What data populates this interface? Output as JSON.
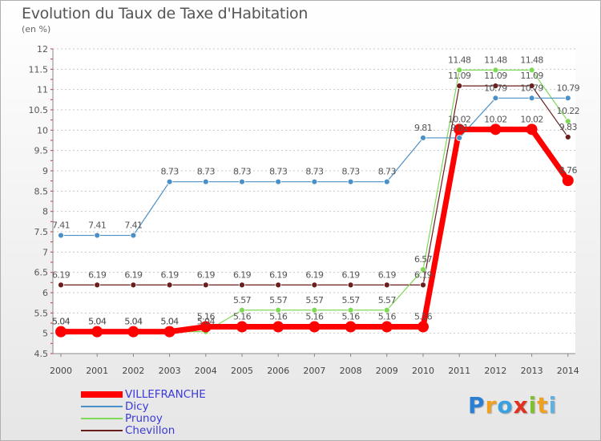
{
  "title": "Evolution du Taux de Taxe d'Habitation",
  "subtitle": "(en %)",
  "logo": {
    "letters": [
      {
        "ch": "P",
        "color": "#2a7fd4"
      },
      {
        "ch": "r",
        "color": "#f0a020"
      },
      {
        "ch": "o",
        "color": "#3aa0e0"
      },
      {
        "ch": "x",
        "color": "#e03020"
      },
      {
        "ch": "i",
        "color": "#80c030"
      },
      {
        "ch": "t",
        "color": "#f0a020"
      },
      {
        "ch": "i",
        "color": "#60b0e0"
      }
    ]
  },
  "chart_data": {
    "type": "line",
    "x": [
      "2000",
      "2001",
      "2002",
      "2003",
      "2004",
      "2005",
      "2006",
      "2007",
      "2008",
      "2009",
      "2010",
      "2011",
      "2012",
      "2013",
      "2014"
    ],
    "yticks": [
      "4.5",
      "5",
      "5.5",
      "6",
      "6.5",
      "7",
      "7.5",
      "8",
      "8.5",
      "9",
      "9.5",
      "10",
      "10.5",
      "11",
      "11.5",
      "12"
    ],
    "ylim": [
      4.5,
      12
    ],
    "grid": "horizontal dashed",
    "legend_position": "bottom-left",
    "series": [
      {
        "name": "Chevillon",
        "color": "#6b1e1e",
        "width": 1.2,
        "values": [
          6.19,
          6.19,
          6.19,
          6.19,
          6.19,
          6.19,
          6.19,
          6.19,
          6.19,
          6.19,
          6.19,
          11.09,
          11.09,
          11.09,
          9.83
        ],
        "labels": [
          "6.19",
          "6.19",
          "6.19",
          "6.19",
          "6.19",
          "6.19",
          "6.19",
          "6.19",
          "6.19",
          "6.19",
          "6.19",
          "11.09",
          "11.09",
          "11.09",
          "9.83"
        ]
      },
      {
        "name": "Prunoy",
        "color": "#7ed957",
        "width": 1.2,
        "values": [
          5.04,
          5.04,
          5.04,
          5.04,
          5.04,
          5.57,
          5.57,
          5.57,
          5.57,
          5.57,
          6.57,
          11.48,
          11.48,
          11.48,
          10.22
        ],
        "labels": [
          "5.04",
          "5.04",
          "5.04",
          "5.04",
          "5.04",
          "5.57",
          "5.57",
          "5.57",
          "5.57",
          "5.57",
          "6.57",
          "11.48",
          "11.48",
          "11.48",
          "10.22"
        ]
      },
      {
        "name": "Dicy",
        "color": "#4a90c8",
        "width": 1.2,
        "values": [
          7.41,
          7.41,
          7.41,
          8.73,
          8.73,
          8.73,
          8.73,
          8.73,
          8.73,
          8.73,
          9.81,
          9.81,
          10.79,
          10.79,
          10.79
        ],
        "labels": [
          "7.41",
          "7.41",
          "7.41",
          "8.73",
          "8.73",
          "8.73",
          "8.73",
          "8.73",
          "8.73",
          "8.73",
          "9.81",
          "9.81",
          "10.79",
          "10.79",
          "10.79"
        ]
      },
      {
        "name": "VILLEFRANCHE",
        "color": "#ff0000",
        "width": 7,
        "values": [
          5.04,
          5.04,
          5.04,
          5.04,
          5.16,
          5.16,
          5.16,
          5.16,
          5.16,
          5.16,
          5.16,
          10.02,
          10.02,
          10.02,
          8.76
        ],
        "labels": [
          "5.04",
          "5.04",
          "5.04",
          "5.04",
          "5.16",
          "5.16",
          "5.16",
          "5.16",
          "5.16",
          "5.16",
          "5.16",
          "10.02",
          "10.02",
          "10.02",
          "8.76"
        ]
      }
    ],
    "legend_order": [
      "VILLEFRANCHE",
      "Dicy",
      "Prunoy",
      "Chevillon"
    ]
  }
}
